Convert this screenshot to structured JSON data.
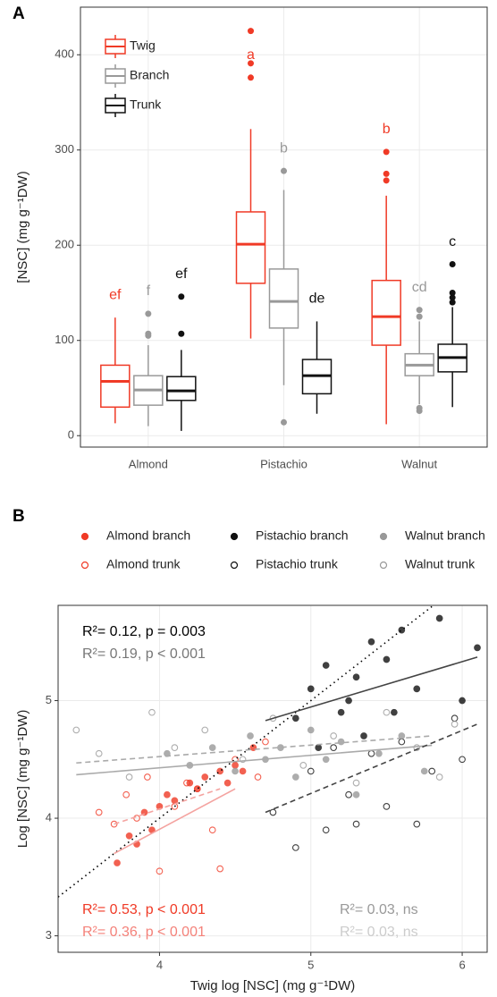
{
  "chart_data": [
    {
      "type": "box",
      "panel": "A",
      "y_label": "[NSC] (mg g⁻¹DW)",
      "categories": [
        "Almond",
        "Pistachio",
        "Walnut"
      ],
      "ylim": [
        -12,
        450
      ],
      "yticks": [
        0,
        100,
        200,
        300,
        400
      ],
      "grid": true,
      "series": [
        {
          "name": "Twig",
          "color": "#f03a26",
          "letters": [
            "ef",
            "a",
            "b"
          ],
          "stats": [
            {
              "min": 13,
              "q1": 30,
              "median": 57,
              "q3": 74,
              "max": 124,
              "outliers": []
            },
            {
              "min": 102,
              "q1": 160,
              "median": 201,
              "q3": 235,
              "max": 322,
              "outliers": [
                376,
                391,
                425
              ]
            },
            {
              "min": 12,
              "q1": 95,
              "median": 125,
              "q3": 163,
              "max": 252,
              "outliers": [
                268,
                275,
                298
              ]
            }
          ]
        },
        {
          "name": "Branch",
          "color": "#999999",
          "letters": [
            "f",
            "b",
            "cd"
          ],
          "stats": [
            {
              "min": 10,
              "q1": 32,
              "median": 48,
              "q3": 63,
              "max": 95,
              "outliers": [
                105,
                107,
                128
              ]
            },
            {
              "min": 53,
              "q1": 113,
              "median": 141,
              "q3": 175,
              "max": 258,
              "outliers": [
                14,
                278
              ]
            },
            {
              "min": 33,
              "q1": 63,
              "median": 74,
              "q3": 86,
              "max": 120,
              "outliers": [
                26,
                29,
                125,
                132
              ]
            }
          ]
        },
        {
          "name": "Trunk",
          "color": "#111111",
          "letters": [
            "ef",
            "de",
            "c"
          ],
          "stats": [
            {
              "min": 5,
              "q1": 37,
              "median": 47,
              "q3": 62,
              "max": 90,
              "outliers": [
                107,
                146
              ]
            },
            {
              "min": 23,
              "q1": 44,
              "median": 63,
              "q3": 80,
              "max": 120,
              "outliers": []
            },
            {
              "min": 30,
              "q1": 67,
              "median": 82,
              "q3": 96,
              "max": 135,
              "outliers": [
                140,
                145,
                150,
                180
              ]
            }
          ]
        }
      ]
    },
    {
      "type": "scatter",
      "panel": "B",
      "x_label": "Twig log [NSC] (mg g⁻¹DW)",
      "y_label": "Log [NSC] (mg g⁻¹DW)",
      "xlim": [
        3.33,
        6.165
      ],
      "ylim": [
        2.86,
        5.81
      ],
      "xticks": [
        4,
        5,
        6
      ],
      "yticks": [
        3,
        4,
        5
      ],
      "grid": true,
      "series": [
        {
          "name": "Almond branch",
          "color": "#f03a26",
          "filled": true,
          "x": [
            3.72,
            3.8,
            3.85,
            3.9,
            3.95,
            4.0,
            4.05,
            4.1,
            4.2,
            4.25,
            4.3,
            4.4,
            4.45,
            4.5,
            4.55,
            4.62
          ],
          "y": [
            3.62,
            3.85,
            3.78,
            4.05,
            3.9,
            4.1,
            4.2,
            4.15,
            4.3,
            4.25,
            4.35,
            4.4,
            4.3,
            4.45,
            4.4,
            4.6
          ]
        },
        {
          "name": "Almond trunk",
          "color": "#f03a26",
          "filled": false,
          "x": [
            3.6,
            3.7,
            3.78,
            3.85,
            3.92,
            4.0,
            4.1,
            4.18,
            4.25,
            4.35,
            4.4,
            4.5,
            4.65,
            4.7
          ],
          "y": [
            4.05,
            3.95,
            4.2,
            4.0,
            4.35,
            3.55,
            4.1,
            4.3,
            4.25,
            3.9,
            3.57,
            4.5,
            4.35,
            4.65
          ]
        },
        {
          "name": "Pistachio branch",
          "color": "#111111",
          "filled": true,
          "x": [
            4.9,
            5.0,
            5.05,
            5.1,
            5.2,
            5.25,
            5.3,
            5.35,
            5.4,
            5.5,
            5.55,
            5.6,
            5.7,
            5.85,
            6.0,
            6.1
          ],
          "y": [
            4.85,
            5.1,
            4.6,
            5.3,
            4.9,
            5.0,
            5.2,
            4.7,
            5.5,
            5.35,
            4.9,
            5.6,
            5.1,
            5.7,
            5.0,
            5.45
          ]
        },
        {
          "name": "Pistachio trunk",
          "color": "#111111",
          "filled": false,
          "x": [
            4.75,
            4.9,
            5.0,
            5.1,
            5.15,
            5.25,
            5.3,
            5.4,
            5.5,
            5.6,
            5.7,
            5.8,
            5.95,
            6.0
          ],
          "y": [
            4.05,
            3.75,
            4.4,
            3.9,
            4.6,
            4.2,
            3.95,
            4.55,
            4.1,
            4.65,
            3.95,
            4.4,
            4.85,
            4.5
          ]
        },
        {
          "name": "Walnut branch",
          "color": "#999999",
          "filled": true,
          "x": [
            4.05,
            4.2,
            4.35,
            4.5,
            4.6,
            4.7,
            4.8,
            4.9,
            5.0,
            5.1,
            5.2,
            5.3,
            5.45,
            5.6,
            5.75
          ],
          "y": [
            4.55,
            4.45,
            4.6,
            4.4,
            4.7,
            4.5,
            4.6,
            4.35,
            4.75,
            4.5,
            4.65,
            4.2,
            4.55,
            4.7,
            4.4
          ]
        },
        {
          "name": "Walnut trunk",
          "color": "#999999",
          "filled": false,
          "x": [
            3.45,
            3.6,
            3.8,
            3.95,
            4.1,
            4.3,
            4.55,
            4.75,
            4.95,
            5.15,
            5.3,
            5.5,
            5.7,
            5.85,
            5.95
          ],
          "y": [
            4.75,
            4.55,
            4.35,
            4.9,
            4.6,
            4.75,
            4.5,
            4.85,
            4.45,
            4.7,
            4.3,
            4.9,
            4.6,
            4.35,
            4.8
          ]
        }
      ],
      "lines": [
        {
          "x": [
            3.33,
            5.81
          ],
          "y": [
            3.33,
            5.81
          ],
          "color": "#000000",
          "dash": "dotted"
        },
        {
          "x": [
            3.7,
            4.5
          ],
          "y": [
            3.7,
            4.25
          ],
          "color": "#f4a3a0",
          "dash": "solid"
        },
        {
          "x": [
            3.7,
            4.4
          ],
          "y": [
            3.95,
            4.25
          ],
          "color": "#f4a3a0",
          "dash": "dashed"
        },
        {
          "x": [
            3.45,
            5.8
          ],
          "y": [
            4.37,
            4.62
          ],
          "color": "#aaaaaa",
          "dash": "solid"
        },
        {
          "x": [
            3.45,
            5.8
          ],
          "y": [
            4.47,
            4.7
          ],
          "color": "#aaaaaa",
          "dash": "dashed"
        },
        {
          "x": [
            4.7,
            6.1
          ],
          "y": [
            4.83,
            5.37
          ],
          "color": "#444444",
          "dash": "solid"
        },
        {
          "x": [
            4.7,
            6.1
          ],
          "y": [
            4.05,
            4.8
          ],
          "color": "#444444",
          "dash": "dashed"
        }
      ],
      "annotations": [
        {
          "text": "R²= 0.12, p =  0.003",
          "color": "#000000"
        },
        {
          "text": "R²= 0.19, p <  0.001",
          "color": "#777777"
        },
        {
          "text": "R²= 0.53, p <  0.001",
          "color": "#f03a26"
        },
        {
          "text": "R²= 0.36, p <  0.001",
          "color": "#f4827a"
        },
        {
          "text": "R²= 0.03, ns",
          "color": "#999999"
        },
        {
          "text": "R²= 0.03, ns",
          "color": "#cccccc"
        }
      ]
    }
  ]
}
